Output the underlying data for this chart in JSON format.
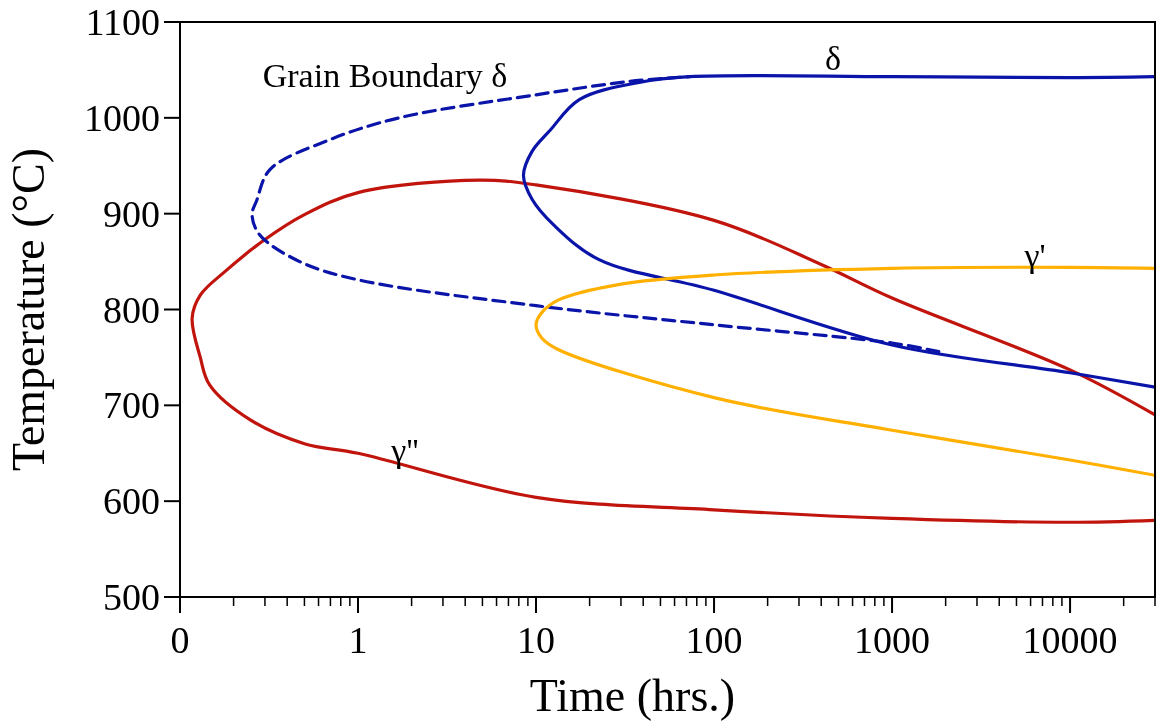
{
  "chart_data": {
    "type": "line",
    "xlabel": "Time (hrs.)",
    "ylabel": "Temperature (°C)",
    "log": "x",
    "xlim": [
      0.1,
      30000
    ],
    "xticks": [
      {
        "value": 0.1,
        "label": "0"
      },
      1,
      10,
      100,
      1000,
      10000
    ],
    "ylim": [
      500,
      1100
    ],
    "yticks": [
      500,
      600,
      700,
      800,
      900,
      1000,
      1100
    ],
    "grid": false,
    "marker": "none",
    "series": [
      {
        "color": "#c0140c",
        "x": [
          30000,
          10000,
          1000,
          400,
          100,
          10,
          4.8,
          1,
          0.5,
          0.3,
          0.18,
          0.13,
          0.117,
          0.13,
          0.147,
          0.247,
          0.5,
          1,
          10,
          100,
          1000,
          10000,
          30000
        ],
        "values": [
          690,
          737,
          812,
          847,
          893,
          930,
          935,
          922,
          899,
          873,
          840,
          815,
          791,
          750,
          721,
          685,
          660,
          650,
          604,
          591,
          582,
          578,
          580
        ]
      },
      {
        "color": "#0a14a8",
        "x": [
          30000,
          10000,
          1000,
          100,
          22.6,
          12.6,
          9.5,
          8.5,
          9.5,
          12,
          17.5,
          38,
          73,
          1000,
          10000,
          30000
        ],
        "values": [
          719,
          734,
          763,
          820,
          852,
          888,
          915,
          940,
          965,
          987,
          1019,
          1037,
          1043,
          1043,
          1042,
          1043
        ]
      },
      {
        "color": "#0a14a8",
        "line_style": "dashed",
        "x": [
          1830,
          1000,
          100,
          10,
          1,
          0.47,
          0.28,
          0.254,
          0.27,
          0.32,
          0.69,
          1.7,
          10,
          33.5,
          73
        ],
        "values": [
          756,
          765,
          784,
          804,
          831,
          850,
          878,
          899,
          914,
          946,
          977,
          1000,
          1024,
          1038,
          1043
        ]
      },
      {
        "color": "#ffb000",
        "x": [
          30000,
          10000,
          1000,
          100,
          29,
          13.4,
          10.8,
          10,
          10.8,
          13.4,
          100,
          1000,
          10000,
          30000
        ],
        "values": [
          843,
          844,
          843,
          836,
          826,
          810,
          797,
          784,
          770,
          758,
          708,
          674,
          643,
          627
        ]
      }
    ],
    "annotations": [
      "Grain Boundary δ",
      "δ",
      "γ'",
      "γ''"
    ]
  }
}
